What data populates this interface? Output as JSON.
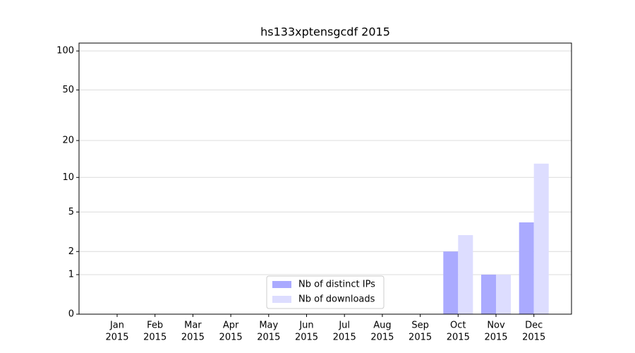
{
  "chart_data": {
    "type": "bar",
    "title": "hs133xptensgcdf 2015",
    "categories": [
      [
        "Jan",
        "2015"
      ],
      [
        "Feb",
        "2015"
      ],
      [
        "Mar",
        "2015"
      ],
      [
        "Apr",
        "2015"
      ],
      [
        "May",
        "2015"
      ],
      [
        "Jun",
        "2015"
      ],
      [
        "Jul",
        "2015"
      ],
      [
        "Aug",
        "2015"
      ],
      [
        "Sep",
        "2015"
      ],
      [
        "Oct",
        "2015"
      ],
      [
        "Nov",
        "2015"
      ],
      [
        "Dec",
        "2015"
      ]
    ],
    "series": [
      {
        "name": "Nb of distinct IPs",
        "color": "#aaaaff",
        "values": [
          0,
          0,
          0,
          0,
          0,
          0,
          0,
          0,
          0,
          2,
          1,
          4
        ]
      },
      {
        "name": "Nb of downloads",
        "color": "#ddddff",
        "values": [
          0,
          0,
          0,
          0,
          0,
          0,
          0,
          0,
          0,
          3,
          1,
          13
        ]
      }
    ],
    "yscale": "log1p",
    "ylim": [
      0,
      115
    ],
    "yticks": [
      0,
      1,
      2,
      5,
      10,
      20,
      50,
      100
    ],
    "grid": true,
    "legend": "lower center"
  }
}
